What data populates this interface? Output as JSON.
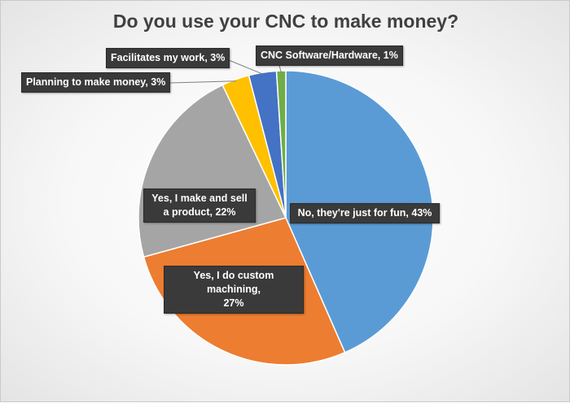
{
  "chart_data": {
    "type": "pie",
    "title": "Do you use your CNC to make money?",
    "slices": [
      {
        "label": "No, they're just for fun",
        "value": 43,
        "value_label": "43%",
        "color": "#5b9bd5"
      },
      {
        "label": "Yes, I do custom machining",
        "value": 27,
        "value_label": "27%",
        "color": "#ed7d31"
      },
      {
        "label": "Yes, I make and sell a product",
        "value": 22,
        "value_label": "22%",
        "color": "#a5a5a5"
      },
      {
        "label": "Planning to make money",
        "value": 3,
        "value_label": "3%",
        "color": "#ffc000"
      },
      {
        "label": "Facilitates my work",
        "value": 3,
        "value_label": "3%",
        "color": "#4472c4"
      },
      {
        "label": "CNC Software/Hardware",
        "value": 1,
        "value_label": "1%",
        "color": "#70ad47"
      }
    ],
    "start_angle_deg": 0,
    "direction": "clockwise",
    "legend": "none"
  }
}
